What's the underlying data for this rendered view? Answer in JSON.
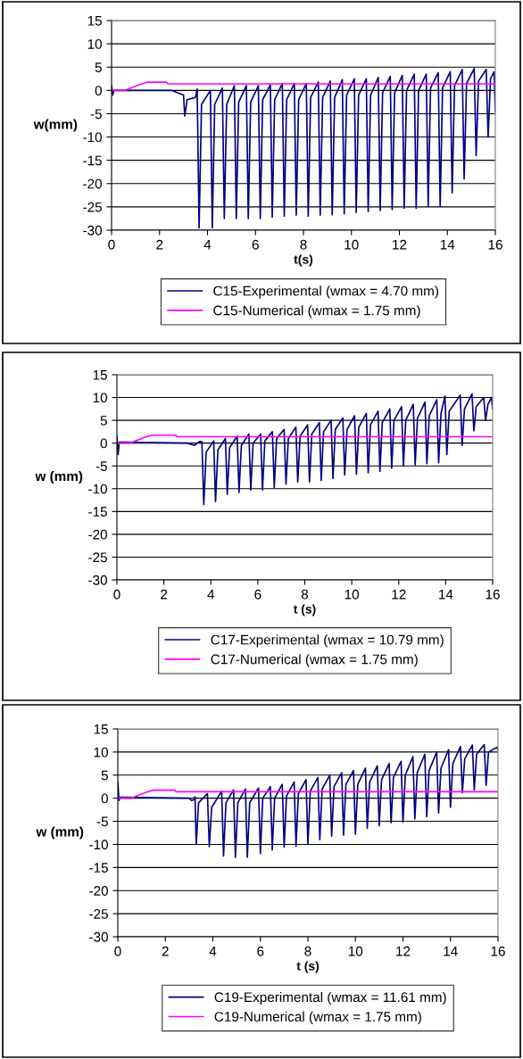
{
  "chart_data": [
    {
      "type": "line",
      "xlabel": "t(s)",
      "ylabel": "w(mm)",
      "xlim": [
        0,
        16
      ],
      "ylim": [
        -30,
        15
      ],
      "xticks": [
        0,
        2,
        4,
        6,
        8,
        10,
        12,
        14,
        16
      ],
      "yticks": [
        -30,
        -25,
        -20,
        -15,
        -10,
        -5,
        0,
        5,
        10,
        15
      ],
      "grid": "y",
      "legend": "bottom",
      "marker": "none",
      "line_style": "solid",
      "series": [
        {
          "name": "C15-Experimental (wmax = 4.70 mm)",
          "color": "#000080",
          "x": [
            0,
            0.05,
            0.1,
            2.5,
            3.0,
            3.05,
            3.15,
            3.5,
            3.57,
            3.65,
            3.75,
            4.12,
            4.2,
            4.3,
            4.62,
            4.7,
            4.8,
            5.12,
            5.2,
            5.3,
            5.62,
            5.7,
            5.8,
            6.12,
            6.2,
            6.3,
            6.62,
            6.7,
            6.8,
            7.12,
            7.2,
            7.3,
            7.62,
            7.7,
            7.8,
            8.12,
            8.2,
            8.3,
            8.62,
            8.7,
            8.8,
            9.12,
            9.2,
            9.3,
            9.62,
            9.7,
            9.8,
            10.12,
            10.2,
            10.3,
            10.62,
            10.7,
            10.8,
            11.12,
            11.2,
            11.3,
            11.62,
            11.7,
            11.8,
            12.12,
            12.2,
            12.3,
            12.62,
            12.7,
            12.8,
            13.12,
            13.2,
            13.3,
            13.62,
            13.7,
            13.8,
            14.12,
            14.2,
            14.3,
            14.62,
            14.7,
            14.8,
            15.12,
            15.2,
            15.3,
            15.62,
            15.7,
            15.8,
            15.95,
            16
          ],
          "values": [
            1,
            -1,
            0,
            0,
            -1,
            -5.5,
            -2,
            -1.5,
            0.3,
            -29.5,
            -3,
            0,
            -29.5,
            -3,
            0.5,
            -27.5,
            -3,
            1,
            -27.5,
            -2.5,
            1,
            -27.5,
            -2.5,
            1,
            -27.5,
            -2,
            1.2,
            -27.2,
            -2,
            1.5,
            -27,
            -2,
            1.5,
            -26.8,
            -2,
            1.5,
            -27,
            -1.5,
            1.8,
            -26.8,
            -1.5,
            2,
            -26.7,
            -1.5,
            2.3,
            -26.5,
            -1,
            2.5,
            -26.2,
            -1,
            2.5,
            -26,
            -1,
            2.8,
            -25.8,
            -0.5,
            3,
            -25.6,
            -0.5,
            3.2,
            -25.3,
            0,
            3.5,
            -25.3,
            0,
            3.5,
            -24.9,
            0.5,
            3.8,
            -24.9,
            0.5,
            4,
            -22,
            1,
            4.5,
            -19,
            1.5,
            4.7,
            -14,
            2,
            4.5,
            -10,
            2.5,
            4,
            -4.5
          ]
        },
        {
          "name": "C15-Numerical (wmax = 1.75 mm)",
          "color": "#ff00ff",
          "x": [
            0,
            0.55,
            0.8,
            1.2,
            1.5,
            2.3,
            2.35,
            16
          ],
          "values": [
            0,
            0,
            0.5,
            1.3,
            1.75,
            1.75,
            1.4,
            1.4
          ]
        }
      ]
    },
    {
      "type": "line",
      "xlabel": "t (s)",
      "ylabel": "w (mm)",
      "xlim": [
        0,
        16
      ],
      "ylim": [
        -30,
        15
      ],
      "xticks": [
        0,
        2,
        4,
        6,
        8,
        10,
        12,
        14,
        16
      ],
      "yticks": [
        -30,
        -25,
        -20,
        -15,
        -10,
        -5,
        0,
        5,
        10,
        15
      ],
      "grid": "y",
      "legend": "bottom",
      "marker": "none",
      "line_style": "solid",
      "series": [
        {
          "name": "C17-Experimental (wmax = 10.79 mm)",
          "color": "#000080",
          "x": [
            0,
            0.05,
            0.1,
            3.0,
            3.3,
            3.5,
            3.62,
            3.7,
            3.8,
            4.12,
            4.2,
            4.3,
            4.62,
            4.7,
            4.8,
            5.12,
            5.2,
            5.3,
            5.62,
            5.7,
            5.8,
            6.12,
            6.2,
            6.3,
            6.62,
            6.7,
            6.8,
            7.12,
            7.2,
            7.3,
            7.62,
            7.7,
            7.8,
            8.12,
            8.2,
            8.3,
            8.62,
            8.7,
            8.8,
            9.12,
            9.2,
            9.3,
            9.62,
            9.7,
            9.8,
            10.12,
            10.2,
            10.3,
            10.62,
            10.7,
            10.8,
            11.12,
            11.2,
            11.3,
            11.62,
            11.7,
            11.8,
            12.12,
            12.2,
            12.3,
            12.62,
            12.7,
            12.8,
            13.12,
            13.2,
            13.3,
            13.62,
            13.7,
            13.8,
            13.97,
            14.05,
            14.15,
            14.62,
            14.7,
            14.8,
            15.12,
            15.2,
            15.3,
            15.62,
            15.7,
            15.8,
            15.95,
            16
          ],
          "values": [
            1.5,
            -2.5,
            0.2,
            0,
            -0.5,
            0.3,
            0.3,
            -13.5,
            -2,
            0.5,
            -12.8,
            -1.5,
            1,
            -11.2,
            -1,
            1.5,
            -10.8,
            -0.5,
            2,
            -10.3,
            0,
            2,
            -10.3,
            0.5,
            2.5,
            -9.8,
            1,
            3,
            -9,
            1,
            3.5,
            -8.5,
            1.5,
            4,
            -8.5,
            2,
            4.5,
            -8.2,
            2.5,
            5,
            -7.8,
            3,
            5.5,
            -7,
            3,
            6,
            -6.8,
            3.5,
            6.5,
            -6.5,
            4,
            7,
            -6.2,
            4.5,
            7.5,
            -5.5,
            5,
            8,
            -5,
            5,
            8.5,
            -4.8,
            5.5,
            9,
            -4.5,
            6,
            9.5,
            -4.3,
            6.5,
            10.3,
            -2.5,
            7,
            10.5,
            -0.5,
            7.5,
            10.79,
            2.7,
            8,
            10,
            5,
            8.5,
            10,
            7.5
          ]
        },
        {
          "name": "C17-Numerical (wmax = 1.75 mm)",
          "color": "#ff00ff",
          "x": [
            0,
            0.55,
            0.8,
            1.2,
            1.5,
            2.5,
            2.55,
            16
          ],
          "values": [
            0,
            0,
            0.5,
            1.3,
            1.75,
            1.75,
            1.4,
            1.4
          ]
        }
      ]
    },
    {
      "type": "line",
      "xlabel": "t (s)",
      "ylabel": "w (mm)",
      "xlim": [
        0,
        16
      ],
      "ylim": [
        -30,
        15
      ],
      "xticks": [
        0,
        2,
        4,
        6,
        8,
        10,
        12,
        14,
        16
      ],
      "yticks": [
        -30,
        -25,
        -20,
        -15,
        -10,
        -5,
        0,
        5,
        10,
        15
      ],
      "grid": "y",
      "legend": "bottom",
      "marker": "none",
      "line_style": "solid",
      "series": [
        {
          "name": "C19-Experimental (wmax = 11.61 mm)",
          "color": "#000080",
          "x": [
            0,
            0.05,
            0.1,
            3.0,
            3.1,
            3.22,
            3.25,
            3.3,
            3.4,
            3.77,
            3.85,
            3.95,
            4.37,
            4.45,
            4.55,
            4.87,
            4.95,
            5.05,
            5.37,
            5.45,
            5.55,
            5.92,
            6.0,
            6.1,
            6.42,
            6.5,
            6.6,
            6.92,
            7.0,
            7.1,
            7.42,
            7.5,
            7.6,
            7.92,
            8.0,
            8.1,
            8.42,
            8.5,
            8.6,
            8.92,
            9.0,
            9.1,
            9.42,
            9.5,
            9.6,
            9.92,
            10.0,
            10.1,
            10.42,
            10.5,
            10.6,
            10.92,
            11.0,
            11.1,
            11.42,
            11.5,
            11.6,
            11.92,
            12.0,
            12.1,
            12.42,
            12.5,
            12.6,
            12.92,
            13.0,
            13.1,
            13.42,
            13.5,
            13.6,
            13.92,
            14.0,
            14.1,
            14.42,
            14.5,
            14.6,
            14.92,
            15.0,
            15.1,
            15.42,
            15.5,
            15.6,
            15.95,
            16
          ],
          "values": [
            3.5,
            -0.5,
            0.2,
            0,
            -0.5,
            -0.3,
            0.3,
            -10,
            -1,
            1,
            -10.5,
            -2,
            1.5,
            -12.5,
            -1,
            1.8,
            -12.8,
            -1,
            2,
            -12.8,
            -1,
            2.2,
            -12,
            0,
            2.5,
            -11.2,
            0,
            3,
            -10.6,
            0.5,
            3.5,
            -10.4,
            1,
            4,
            -9.9,
            1.5,
            4.5,
            -9,
            2,
            5,
            -8.2,
            2.5,
            5.5,
            -8,
            3,
            6,
            -7.8,
            3,
            6.5,
            -6.5,
            3.5,
            7,
            -6,
            4,
            7.5,
            -5.3,
            4.5,
            8,
            -5.2,
            5,
            9,
            -4.5,
            5.5,
            9.5,
            -4,
            6,
            10,
            -3.2,
            6.5,
            10.5,
            -2,
            7.5,
            11.2,
            1.2,
            8.5,
            11.5,
            1.8,
            9.5,
            11.61,
            2.8,
            10,
            11,
            10.5
          ]
        },
        {
          "name": "C19-Numerical (wmax = 1.75 mm)",
          "color": "#ff00ff",
          "x": [
            0,
            0.55,
            0.8,
            1.2,
            1.5,
            2.4,
            2.45,
            16
          ],
          "values": [
            0,
            0,
            0.5,
            1.3,
            1.75,
            1.75,
            1.4,
            1.4
          ]
        }
      ]
    }
  ]
}
